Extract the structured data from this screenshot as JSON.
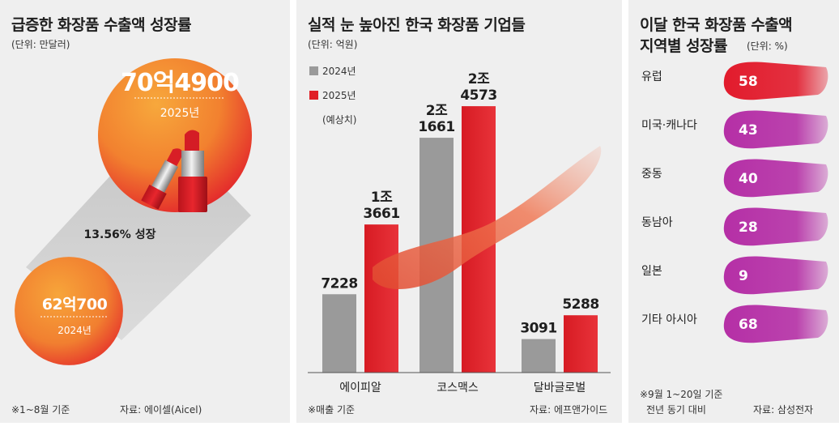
{
  "chart_data": [
    {
      "type": "bar",
      "title": "급증한 화장품 수출액 성장률",
      "unit": "(단위: 만달러)",
      "categories": [
        "2024년",
        "2025년"
      ],
      "values": [
        620700,
        704900
      ],
      "value_labels": [
        "62억700",
        "70억4900"
      ],
      "growth_label": "13.56% 성장",
      "note": "※1~8월 기준",
      "source": "자료: 에이셀(Aicel)",
      "colors": {
        "circle_inner": "#f6a13a",
        "circle_outer": "#e8202a"
      }
    },
    {
      "type": "bar",
      "title": "실적 눈 높아진 한국 화장품 기업들",
      "unit": "(단위: 억원)",
      "categories": [
        "에이피알",
        "코스맥스",
        "달바글로벌"
      ],
      "series": [
        {
          "name": "2024년",
          "values": [
            7228,
            21661,
            3091
          ],
          "labels": [
            [
              "7228"
            ],
            [
              "2조",
              "1661"
            ],
            [
              "3091"
            ]
          ],
          "color": "#9a9a9a"
        },
        {
          "name": "2025년",
          "values": [
            13661,
            24573,
            5288
          ],
          "labels": [
            [
              "1조",
              "3661"
            ],
            [
              "2조",
              "4573"
            ],
            [
              "5288"
            ]
          ],
          "color": "#e01f26"
        }
      ],
      "legend_extra": "(예상치)",
      "ylim": [
        0,
        26000
      ],
      "note": "※매출 기준",
      "source": "자료: 에프앤가이드"
    },
    {
      "type": "bar",
      "title_lines": [
        "이달 한국 화장품 수출액",
        "지역별 성장률"
      ],
      "unit": "(단위: %)",
      "categories": [
        "유럽",
        "미국·캐나다",
        "중동",
        "동남아",
        "일본",
        "기타 아시아"
      ],
      "values": [
        58,
        43,
        40,
        28,
        9,
        68
      ],
      "colors": [
        "#e21b2c",
        "#b52fa6",
        "#b52fa6",
        "#b52fa6",
        "#b52fa6",
        "#b52fa6"
      ],
      "note_lines": [
        "※9월 1~20일 기준",
        "전년 동기 대비"
      ],
      "source": "자료: 삼성전자"
    }
  ]
}
